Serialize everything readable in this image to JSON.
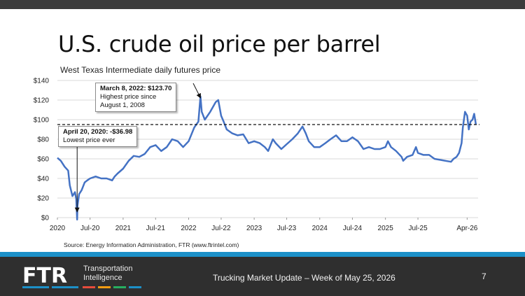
{
  "slide": {
    "title": "U.S. crude oil price per barrel",
    "subtitle": "West Texas Intermediate daily futures price",
    "source": "Source: Energy Information Administration, FTR (www.ftrintel.com)",
    "footer_title": "Trucking Market Update – Week of May 25, 2026",
    "page_number": "7",
    "brand": {
      "logo_text": "FTR",
      "line1": "Transportation",
      "line2": "Intelligence"
    }
  },
  "annotations": {
    "high": {
      "heading": "March 8, 2022: $123.70",
      "line1": "Highest price since",
      "line2": "August 1, 2008"
    },
    "low": {
      "heading": "April 20, 2020: -$36.98",
      "line1": "Lowest price ever"
    }
  },
  "colors": {
    "series": "#4472c4",
    "accent_strip": "#1c90c8",
    "footer_bg": "#2f2f2f",
    "top_bar": "#3b3b3b"
  },
  "chart_data": {
    "type": "line",
    "title": "",
    "xlabel": "",
    "ylabel": "",
    "x_tick_labels": [
      "2020",
      "Jul-20",
      "2021",
      "Jul-21",
      "2022",
      "Jul-22",
      "2023",
      "Jul-23",
      "2024",
      "Jul-24",
      "2025",
      "Jul-25",
      "Apr-26"
    ],
    "x_tick_dates": [
      "2020-01-01",
      "2020-07-01",
      "2021-01-01",
      "2021-07-01",
      "2022-01-01",
      "2022-07-01",
      "2023-01-01",
      "2023-07-01",
      "2024-01-01",
      "2024-07-01",
      "2025-01-01",
      "2025-07-01",
      "2026-04-01"
    ],
    "y_tick_labels": [
      "$0",
      "$20",
      "$40",
      "$60",
      "$80",
      "$100",
      "$120",
      "$140"
    ],
    "ylim": [
      0,
      140
    ],
    "grid": true,
    "reference_line": {
      "value": 95,
      "style": "dashed"
    },
    "series": [
      {
        "x": [
          "2020-01-01",
          "2020-01-20",
          "2020-02-10",
          "2020-03-01",
          "2020-03-10",
          "2020-03-25",
          "2020-04-08",
          "2020-04-15",
          "2020-04-20",
          "2020-04-22",
          "2020-05-01",
          "2020-05-15",
          "2020-06-01",
          "2020-06-15",
          "2020-07-01",
          "2020-08-01",
          "2020-09-01",
          "2020-10-01",
          "2020-11-01",
          "2020-11-15",
          "2020-12-01",
          "2021-01-01",
          "2021-02-01",
          "2021-03-01",
          "2021-04-01",
          "2021-05-01",
          "2021-06-01",
          "2021-07-01",
          "2021-08-01",
          "2021-09-01",
          "2021-10-01",
          "2021-11-01",
          "2021-12-01",
          "2022-01-01",
          "2022-02-01",
          "2022-02-24",
          "2022-03-08",
          "2022-03-15",
          "2022-04-01",
          "2022-05-01",
          "2022-06-01",
          "2022-06-15",
          "2022-07-01",
          "2022-07-15",
          "2022-08-01",
          "2022-09-01",
          "2022-10-01",
          "2022-11-01",
          "2022-12-01",
          "2023-01-01",
          "2023-02-01",
          "2023-03-01",
          "2023-03-20",
          "2023-04-15",
          "2023-05-01",
          "2023-06-01",
          "2023-07-01",
          "2023-08-01",
          "2023-09-01",
          "2023-09-27",
          "2023-10-15",
          "2023-11-01",
          "2023-12-01",
          "2024-01-01",
          "2024-02-01",
          "2024-03-01",
          "2024-04-01",
          "2024-05-01",
          "2024-06-01",
          "2024-07-01",
          "2024-08-01",
          "2024-09-01",
          "2024-10-01",
          "2024-11-01",
          "2024-12-01",
          "2025-01-01",
          "2025-01-15",
          "2025-02-01",
          "2025-03-01",
          "2025-04-01",
          "2025-04-10",
          "2025-05-01",
          "2025-06-01",
          "2025-06-20",
          "2025-07-01",
          "2025-08-01",
          "2025-09-01",
          "2025-10-01",
          "2025-11-01",
          "2025-12-01",
          "2026-01-01",
          "2026-01-15",
          "2026-02-01",
          "2026-02-15",
          "2026-03-01",
          "2026-03-08",
          "2026-03-20",
          "2026-04-01",
          "2026-04-10",
          "2026-04-20",
          "2026-05-01",
          "2026-05-10",
          "2026-05-20"
        ],
        "y": [
          61,
          58,
          52,
          48,
          33,
          22,
          26,
          19,
          -36.98,
          12,
          24,
          28,
          36,
          38,
          40,
          42,
          40,
          40,
          38,
          42,
          45,
          50,
          58,
          63,
          62,
          65,
          72,
          74,
          68,
          72,
          80,
          78,
          72,
          78,
          92,
          98,
          123.7,
          108,
          100,
          108,
          118,
          120,
          104,
          98,
          90,
          86,
          84,
          85,
          76,
          78,
          76,
          72,
          68,
          80,
          76,
          70,
          75,
          80,
          86,
          93,
          86,
          78,
          72,
          72,
          76,
          80,
          84,
          78,
          78,
          82,
          78,
          70,
          72,
          70,
          70,
          72,
          78,
          72,
          68,
          62,
          58,
          62,
          64,
          72,
          66,
          64,
          64,
          60,
          59,
          58,
          57,
          60,
          62,
          66,
          76,
          92,
          108,
          104,
          90,
          98,
          100,
          106,
          95
        ]
      }
    ]
  }
}
